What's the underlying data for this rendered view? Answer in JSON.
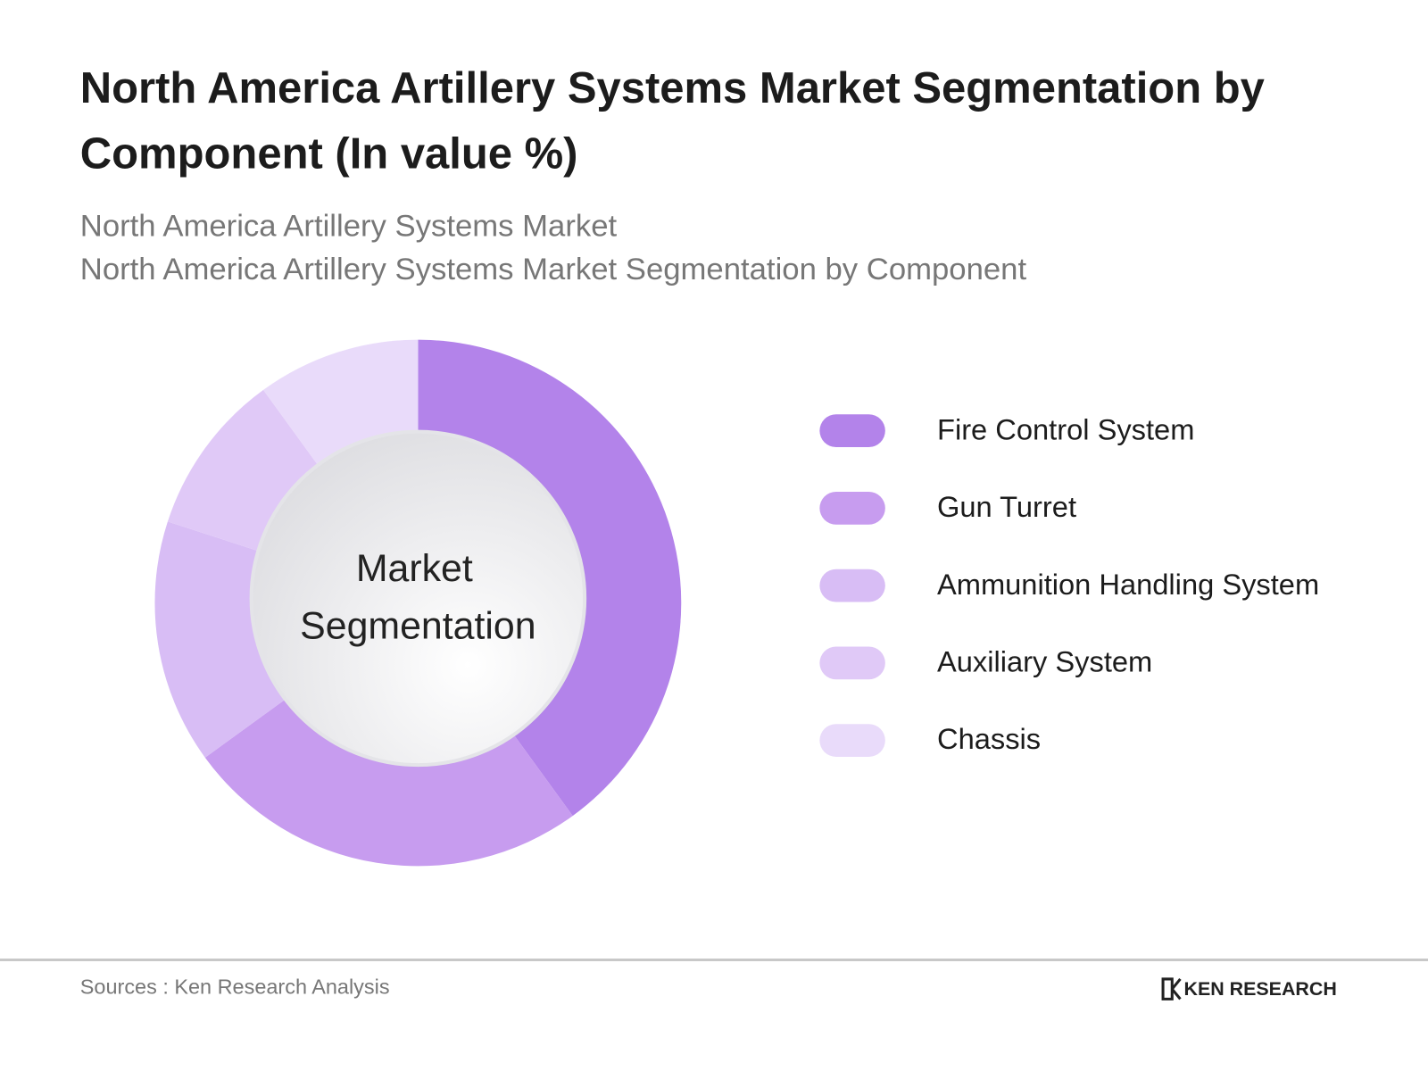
{
  "chart_data": {
    "type": "donut",
    "title": [
      "North America Artillery Systems Market Segmentation by",
      "Component (In value %)"
    ],
    "subtitle": [
      "North America Artillery Systems Market",
      "North America Artillery Systems Market Segmentation by Component"
    ],
    "center_label": [
      "Market",
      "Segmentation"
    ],
    "categories": [
      "Fire Control System",
      "Gun Turret",
      "Ammunition Handling System",
      "Auxiliary System",
      "Chassis"
    ],
    "values": [
      40,
      25,
      15,
      10,
      10
    ],
    "colors": [
      "#b383ea",
      "#c79cef",
      "#d8bdf5",
      "#e0c9f7",
      "#e9dbfa"
    ],
    "source": "Sources : Ken Research Analysis",
    "logo": "KEN RESEARCH"
  }
}
